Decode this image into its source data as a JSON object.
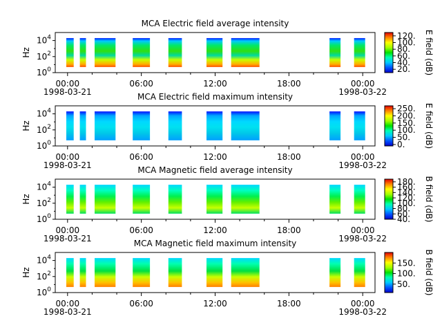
{
  "chart_data": [
    {
      "type": "heatmap",
      "title": "MCA  Electric field average intensity",
      "ylabel": "Hz",
      "yscale": "log",
      "ylim": [
        1,
        100000
      ],
      "y_ticks": [
        {
          "base": "10",
          "exp": "0"
        },
        {
          "base": "10",
          "exp": "2"
        },
        {
          "base": "10",
          "exp": "4"
        }
      ],
      "x_ticks": [
        "00:00",
        "06:00",
        "12:00",
        "18:00",
        "00:00"
      ],
      "x_dates": [
        "1998-03-21",
        "1998-03-22"
      ],
      "xlim_hours": [
        -1,
        25
      ],
      "colorbar": {
        "label": "E field (dB)",
        "ticks": [
          "20.",
          "40.",
          "60.",
          "80.",
          "100.",
          "120."
        ],
        "range": [
          10,
          130
        ]
      },
      "segments_hours": [
        [
          -0.1,
          0.5
        ],
        [
          1.0,
          1.5
        ],
        [
          2.2,
          3.9
        ],
        [
          5.3,
          6.7
        ],
        [
          8.2,
          9.3
        ],
        [
          11.3,
          12.6
        ],
        [
          13.3,
          15.6
        ],
        [
          21.3,
          22.2
        ],
        [
          23.3,
          24.2
        ]
      ]
    },
    {
      "type": "heatmap",
      "title": "MCA  Electric field maximum intensity",
      "ylabel": "Hz",
      "yscale": "log",
      "ylim": [
        1,
        100000
      ],
      "y_ticks": [
        {
          "base": "10",
          "exp": "0"
        },
        {
          "base": "10",
          "exp": "2"
        },
        {
          "base": "10",
          "exp": "4"
        }
      ],
      "x_ticks": [
        "00:00",
        "06:00",
        "12:00",
        "18:00",
        "00:00"
      ],
      "x_dates": [
        "1998-03-21",
        "1998-03-22"
      ],
      "xlim_hours": [
        -1,
        25
      ],
      "colorbar": {
        "label": "E field (dB)",
        "ticks": [
          "0.",
          "50.",
          "100.",
          "150.",
          "200.",
          "250."
        ],
        "range": [
          -10,
          270
        ]
      },
      "segments_hours": [
        [
          -0.1,
          0.5
        ],
        [
          1.0,
          1.5
        ],
        [
          2.2,
          3.9
        ],
        [
          5.3,
          6.7
        ],
        [
          8.2,
          9.3
        ],
        [
          11.3,
          12.6
        ],
        [
          13.3,
          15.6
        ],
        [
          21.3,
          22.2
        ],
        [
          23.3,
          24.2
        ]
      ]
    },
    {
      "type": "heatmap",
      "title": "MCA  Magnetic field average intensity",
      "ylabel": "Hz",
      "yscale": "log",
      "ylim": [
        1,
        100000
      ],
      "y_ticks": [
        {
          "base": "10",
          "exp": "0"
        },
        {
          "base": "10",
          "exp": "2"
        },
        {
          "base": "10",
          "exp": "4"
        }
      ],
      "x_ticks": [
        "00:00",
        "06:00",
        "12:00",
        "18:00",
        "00:00"
      ],
      "x_dates": [
        "1998-03-21",
        "1998-03-22"
      ],
      "xlim_hours": [
        -1,
        25
      ],
      "colorbar": {
        "label": "B field (dB)",
        "ticks": [
          "40.",
          "60.",
          "80.",
          "100.",
          "120.",
          "140.",
          "160.",
          "180."
        ],
        "range": [
          40,
          190
        ]
      },
      "segments_hours": [
        [
          -0.1,
          0.5
        ],
        [
          1.0,
          1.5
        ],
        [
          2.2,
          3.9
        ],
        [
          5.3,
          6.7
        ],
        [
          8.2,
          9.3
        ],
        [
          11.3,
          12.6
        ],
        [
          13.3,
          15.6
        ],
        [
          21.3,
          22.2
        ],
        [
          23.3,
          24.2
        ]
      ]
    },
    {
      "type": "heatmap",
      "title": "MCA  Magnetic field maximum intensity",
      "ylabel": "Hz",
      "yscale": "log",
      "ylim": [
        1,
        100000
      ],
      "y_ticks": [
        {
          "base": "10",
          "exp": "0"
        },
        {
          "base": "10",
          "exp": "2"
        },
        {
          "base": "10",
          "exp": "4"
        }
      ],
      "x_ticks": [
        "00:00",
        "06:00",
        "12:00",
        "18:00",
        "00:00"
      ],
      "x_dates": [
        "1998-03-21",
        "1998-03-22"
      ],
      "xlim_hours": [
        -1,
        25
      ],
      "colorbar": {
        "label": "B field (dB)",
        "ticks": [
          "50.",
          "100.",
          "150."
        ],
        "range": [
          10,
          200
        ]
      },
      "segments_hours": [
        [
          -0.1,
          0.5
        ],
        [
          1.0,
          1.5
        ],
        [
          2.2,
          3.9
        ],
        [
          5.3,
          6.7
        ],
        [
          8.2,
          9.3
        ],
        [
          11.3,
          12.6
        ],
        [
          13.3,
          15.6
        ],
        [
          21.3,
          22.2
        ],
        [
          23.3,
          24.2
        ]
      ]
    }
  ]
}
